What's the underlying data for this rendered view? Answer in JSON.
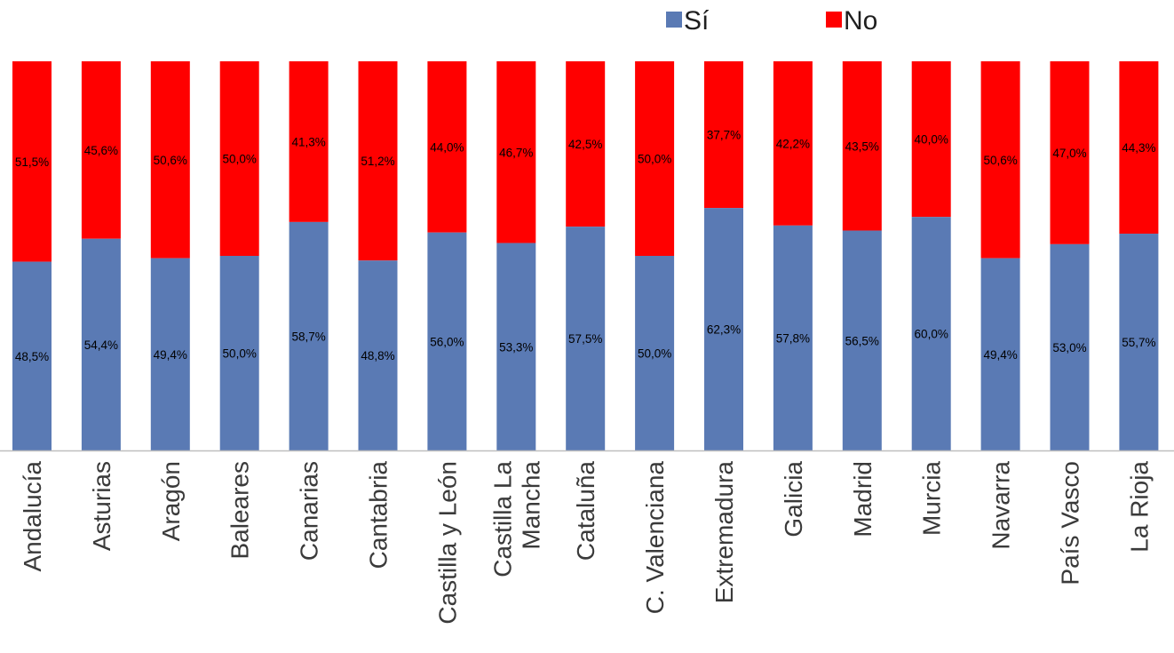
{
  "chart_data": {
    "type": "bar",
    "stacked": true,
    "percent_stacked": true,
    "categories": [
      "Andalucía",
      "Asturias",
      "Aragón",
      "Baleares",
      "Canarias",
      "Cantabria",
      "Castilla y León",
      "Castilla La Mancha",
      "Cataluña",
      "C. Valenciana",
      "Extremadura",
      "Galicia",
      "Madrid",
      "Murcia",
      "Navarra",
      "País Vasco",
      "La Rioja"
    ],
    "series": [
      {
        "name": "Sí",
        "color": "#5a7ab4",
        "values": [
          48.5,
          54.4,
          49.4,
          50.0,
          58.7,
          48.8,
          56.0,
          53.3,
          57.5,
          50.0,
          62.3,
          57.8,
          56.5,
          60.0,
          49.4,
          53.0,
          55.7
        ],
        "labels": [
          "48,5%",
          "54,4%",
          "49,4%",
          "50,0%",
          "58,7%",
          "48,8%",
          "56,0%",
          "53,3%",
          "57,5%",
          "50,0%",
          "62,3%",
          "57,8%",
          "56,5%",
          "60,0%",
          "49,4%",
          "53,0%",
          "55,7%"
        ]
      },
      {
        "name": "No",
        "color": "#ff0000",
        "values": [
          51.5,
          45.6,
          50.6,
          50.0,
          41.3,
          51.2,
          44.0,
          46.7,
          42.5,
          50.0,
          37.7,
          42.2,
          43.5,
          40.0,
          50.6,
          47.0,
          44.3
        ],
        "labels": [
          "51,5%",
          "45,6%",
          "50,6%",
          "50,0%",
          "41,3%",
          "51,2%",
          "44,0%",
          "46,7%",
          "42,5%",
          "50,0%",
          "37,7%",
          "42,2%",
          "43,5%",
          "40,0%",
          "50,6%",
          "47,0%",
          "44,3%"
        ]
      }
    ],
    "ylim": [
      0,
      100
    ],
    "grid": false,
    "legend_position": "top-right"
  }
}
